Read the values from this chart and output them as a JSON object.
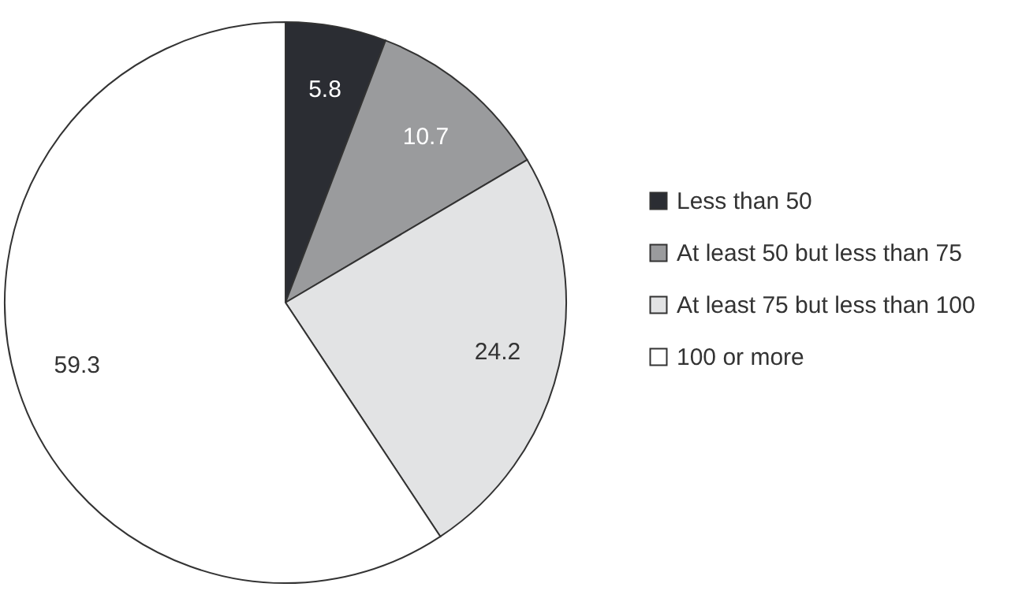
{
  "chart_data": {
    "type": "pie",
    "categories": [
      "Less than 50",
      "At least 50 but less than 75",
      "At least 75 but less than 100",
      "100 or more"
    ],
    "values": [
      5.8,
      10.7,
      24.2,
      59.3
    ],
    "colors": [
      "#2b2d33",
      "#9a9b9d",
      "#e2e3e4",
      "#ffffff"
    ],
    "data_labels": true,
    "legend": "right"
  }
}
